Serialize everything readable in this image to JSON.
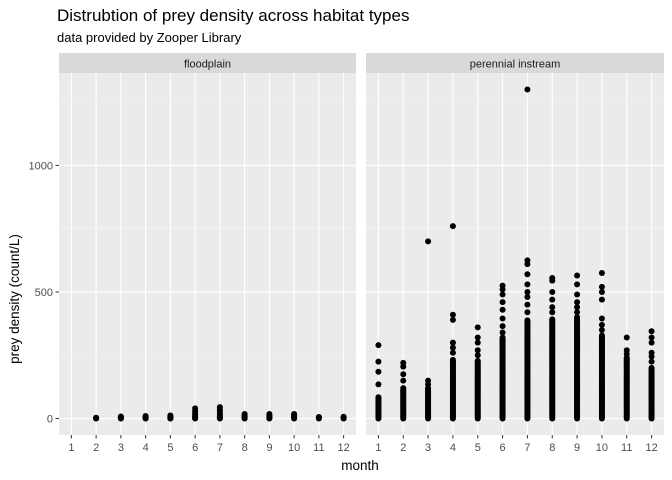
{
  "chart_data": {
    "type": "scatter",
    "title": "Distrubtion of prey density across habitat types",
    "subtitle": "data provided by Zooper Library",
    "xlabel": "month",
    "ylabel": "prey density (count/L)",
    "x_ticks": [
      "1",
      "2",
      "3",
      "4",
      "5",
      "6",
      "7",
      "8",
      "9",
      "10",
      "11",
      "12"
    ],
    "y_ticks": [
      0,
      500,
      1000
    ],
    "xlim": [
      0.5,
      12.5
    ],
    "ylim": [
      -65,
      1365
    ],
    "grid": true,
    "colors": {
      "panel_background": "#ebebeb",
      "strip_background": "#d9d9d9",
      "grid_major": "#ffffff",
      "point": "#000000"
    },
    "facets": [
      {
        "label": "floodplain",
        "points": [
          [
            2,
            0
          ],
          [
            2,
            1
          ],
          [
            2,
            2
          ],
          [
            2,
            3
          ],
          [
            3,
            0
          ],
          [
            3,
            1
          ],
          [
            3,
            3
          ],
          [
            3,
            5
          ],
          [
            3,
            8
          ],
          [
            4,
            0
          ],
          [
            4,
            1
          ],
          [
            4,
            3
          ],
          [
            4,
            5
          ],
          [
            4,
            8
          ],
          [
            4,
            10
          ],
          [
            5,
            0
          ],
          [
            5,
            1
          ],
          [
            5,
            3
          ],
          [
            5,
            6
          ],
          [
            5,
            9
          ],
          [
            5,
            12
          ],
          [
            6,
            0
          ],
          [
            6,
            2
          ],
          [
            6,
            5
          ],
          [
            6,
            9
          ],
          [
            6,
            15
          ],
          [
            6,
            22
          ],
          [
            6,
            30
          ],
          [
            6,
            40
          ],
          [
            7,
            0
          ],
          [
            7,
            2
          ],
          [
            7,
            5
          ],
          [
            7,
            9
          ],
          [
            7,
            14
          ],
          [
            7,
            20
          ],
          [
            7,
            28
          ],
          [
            7,
            35
          ],
          [
            7,
            45
          ],
          [
            8,
            0
          ],
          [
            8,
            2
          ],
          [
            8,
            5
          ],
          [
            8,
            9
          ],
          [
            8,
            13
          ],
          [
            8,
            18
          ],
          [
            9,
            0
          ],
          [
            9,
            2
          ],
          [
            9,
            5
          ],
          [
            9,
            9
          ],
          [
            9,
            13
          ],
          [
            9,
            18
          ],
          [
            10,
            0
          ],
          [
            10,
            2
          ],
          [
            10,
            5
          ],
          [
            10,
            9
          ],
          [
            10,
            13
          ],
          [
            10,
            18
          ],
          [
            11,
            0
          ],
          [
            11,
            2
          ],
          [
            11,
            4
          ],
          [
            11,
            6
          ],
          [
            12,
            0
          ],
          [
            12,
            2
          ],
          [
            12,
            4
          ],
          [
            12,
            7
          ]
        ]
      },
      {
        "label": "perennial instream",
        "columns": [
          {
            "month": 1,
            "dense_max": 85,
            "outliers": [
              135,
              185,
              225,
              290
            ]
          },
          {
            "month": 2,
            "dense_max": 120,
            "outliers": [
              150,
              175,
              205,
              220
            ]
          },
          {
            "month": 3,
            "dense_max": 120,
            "outliers": [
              135,
              150,
              700
            ]
          },
          {
            "month": 4,
            "dense_max": 235,
            "outliers": [
              260,
              280,
              300,
              390,
              410,
              760
            ]
          },
          {
            "month": 5,
            "dense_max": 230,
            "outliers": [
              250,
              270,
              300,
              320,
              360
            ]
          },
          {
            "month": 6,
            "dense_max": 320,
            "outliers": [
              340,
              365,
              395,
              430,
              460,
              490,
              510,
              525
            ]
          },
          {
            "month": 7,
            "dense_max": 390,
            "outliers": [
              420,
              450,
              480,
              500,
              530,
              570,
              610,
              625,
              1300
            ]
          },
          {
            "month": 8,
            "dense_max": 395,
            "outliers": [
              420,
              440,
              470,
              500,
              545,
              555
            ]
          },
          {
            "month": 9,
            "dense_max": 400,
            "outliers": [
              420,
              440,
              460,
              490,
              530,
              565
            ]
          },
          {
            "month": 10,
            "dense_max": 330,
            "outliers": [
              350,
              370,
              395,
              470,
              500,
              520,
              575
            ]
          },
          {
            "month": 11,
            "dense_max": 240,
            "outliers": [
              255,
              270,
              320
            ]
          },
          {
            "month": 12,
            "dense_max": 200,
            "outliers": [
              225,
              245,
              260,
              300,
              320,
              345
            ]
          }
        ]
      }
    ]
  }
}
